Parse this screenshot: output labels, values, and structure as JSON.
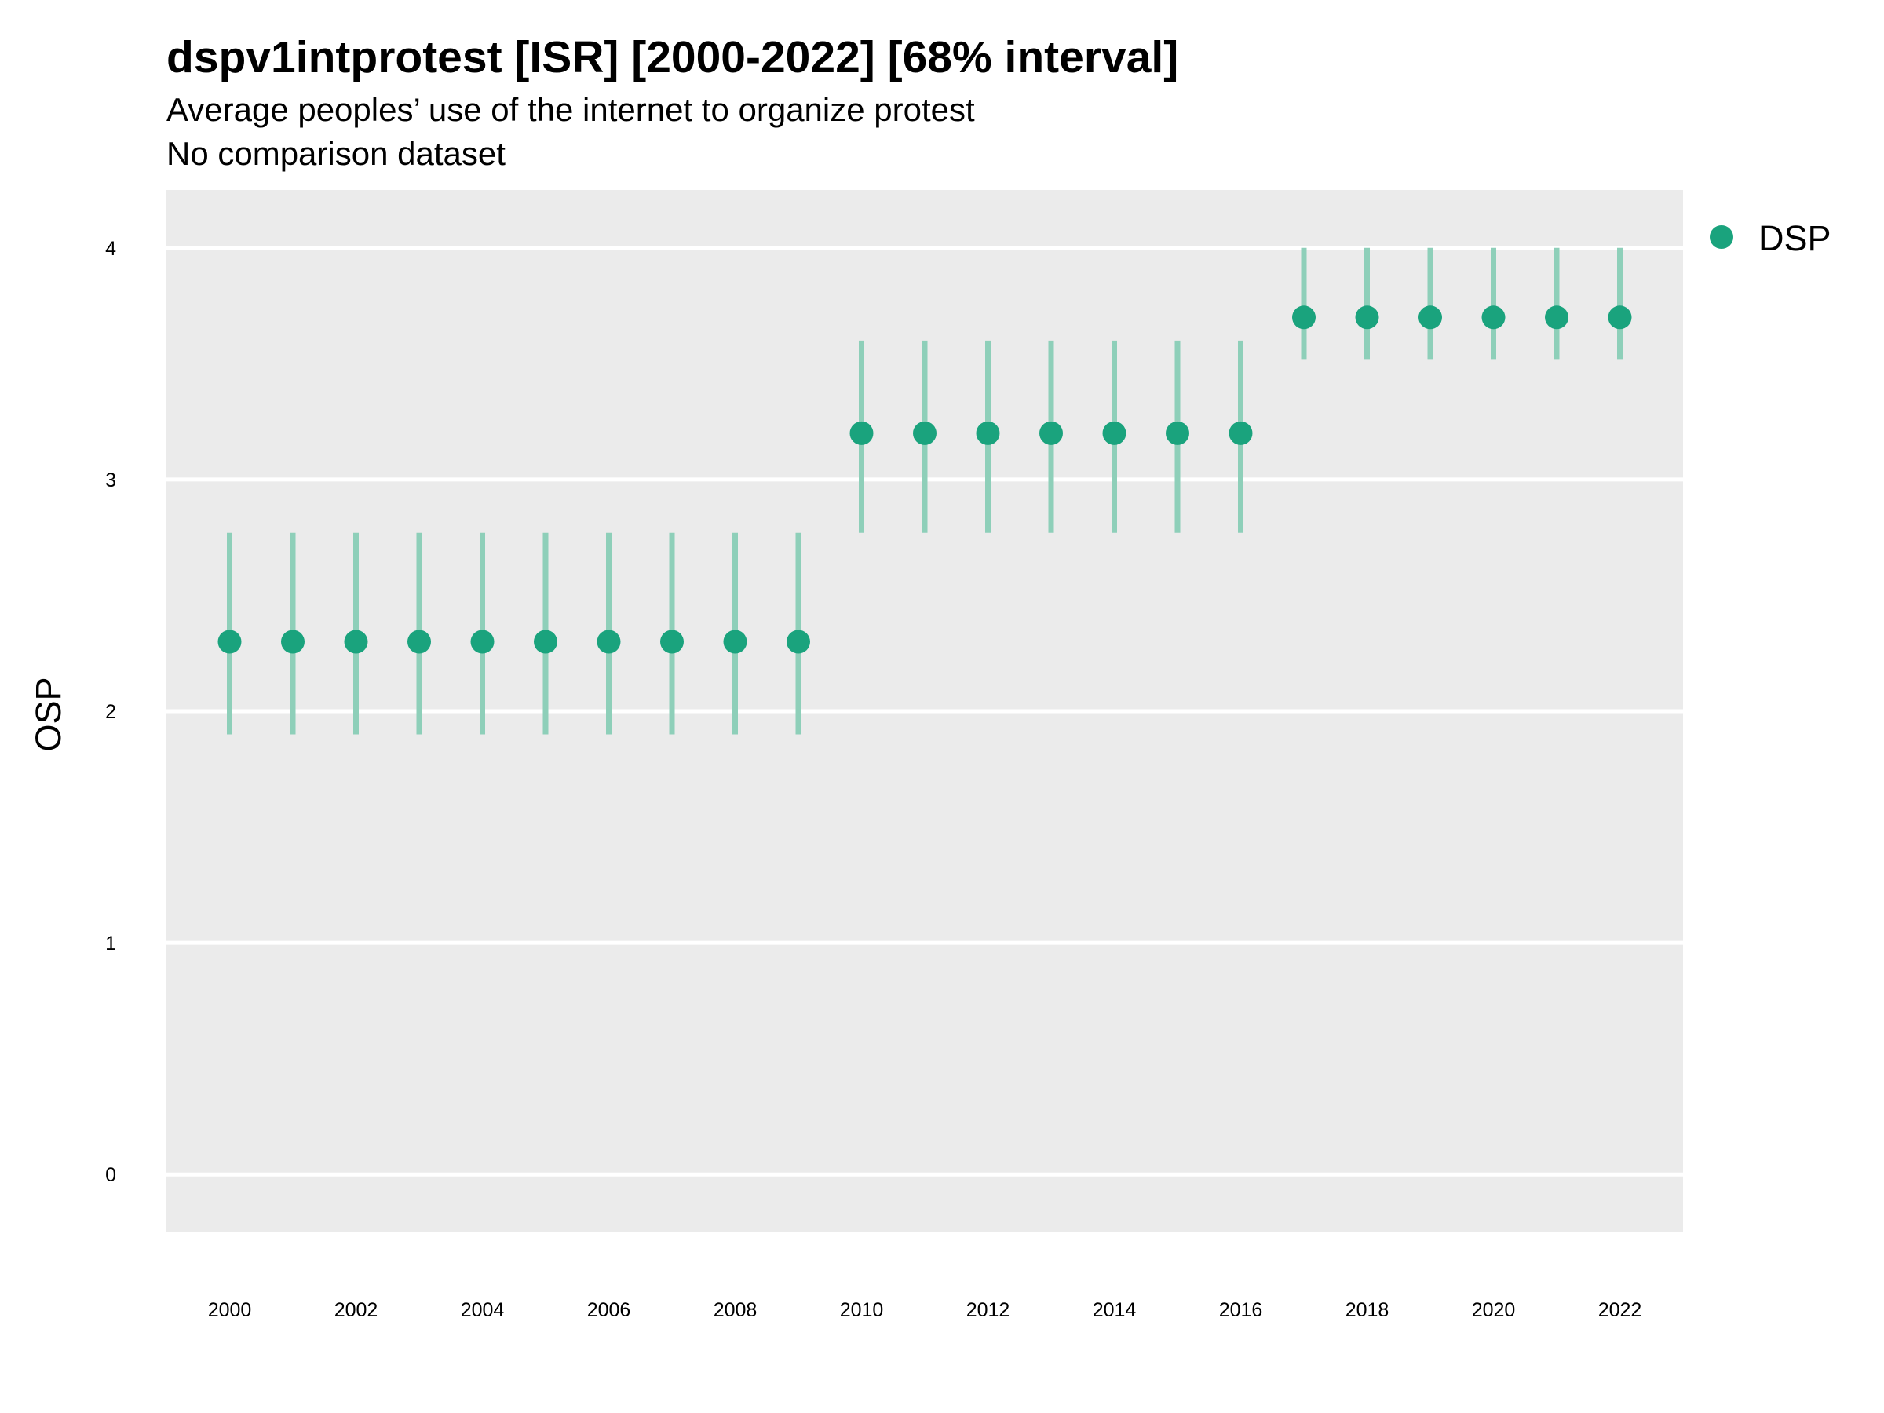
{
  "chart_data": {
    "type": "scatter",
    "title": "dspv1intprotest [ISR] [2000-2022] [68% interval]",
    "subtitle": "Average peoples’ use of the internet to organize protest",
    "subtitle2": "No comparison dataset",
    "xlabel": "",
    "ylabel": "OSP",
    "xlim": [
      1999,
      2023
    ],
    "ylim": [
      -0.25,
      4.25
    ],
    "x_ticks": [
      2000,
      2002,
      2004,
      2006,
      2008,
      2010,
      2012,
      2014,
      2016,
      2018,
      2020,
      2022
    ],
    "x_tick_labels": [
      "2000",
      "2002",
      "2004",
      "2006",
      "2008",
      "2010",
      "2012",
      "2014",
      "2016",
      "2018",
      "2020",
      "2022"
    ],
    "y_ticks": [
      0,
      1,
      2,
      3,
      4
    ],
    "y_tick_labels": [
      "0",
      "1",
      "2",
      "3",
      "4"
    ],
    "grid": true,
    "legend_position": "top-right",
    "colors": {
      "point": "#1aa37d",
      "interval": "#8ecfb9",
      "panel": "#ebebeb",
      "grid": "#ffffff"
    },
    "series": [
      {
        "name": "DSP",
        "x": [
          2000,
          2001,
          2002,
          2003,
          2004,
          2005,
          2006,
          2007,
          2008,
          2009,
          2010,
          2011,
          2012,
          2013,
          2014,
          2015,
          2016,
          2017,
          2018,
          2019,
          2020,
          2021,
          2022
        ],
        "y": [
          2.3,
          2.3,
          2.3,
          2.3,
          2.3,
          2.3,
          2.3,
          2.3,
          2.3,
          2.3,
          3.2,
          3.2,
          3.2,
          3.2,
          3.2,
          3.2,
          3.2,
          3.7,
          3.7,
          3.7,
          3.7,
          3.7,
          3.7
        ],
        "lower": [
          1.9,
          1.9,
          1.9,
          1.9,
          1.9,
          1.9,
          1.9,
          1.9,
          1.9,
          1.9,
          2.77,
          2.77,
          2.77,
          2.77,
          2.77,
          2.77,
          2.77,
          3.52,
          3.52,
          3.52,
          3.52,
          3.52,
          3.52
        ],
        "upper": [
          2.77,
          2.77,
          2.77,
          2.77,
          2.77,
          2.77,
          2.77,
          2.77,
          2.77,
          2.77,
          3.6,
          3.6,
          3.6,
          3.6,
          3.6,
          3.6,
          3.6,
          4.0,
          4.0,
          4.0,
          4.0,
          4.0,
          4.0
        ]
      }
    ]
  }
}
